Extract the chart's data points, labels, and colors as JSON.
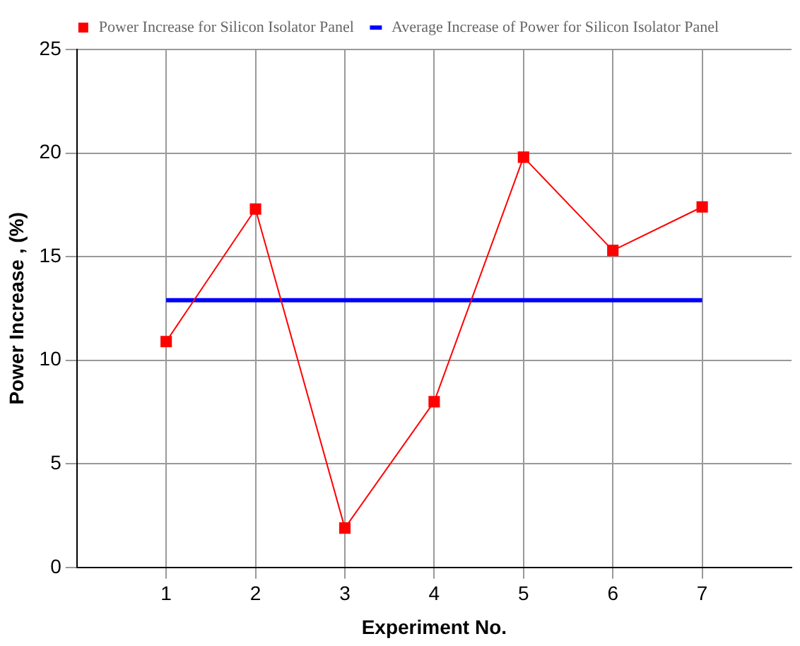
{
  "chart_data": {
    "type": "line",
    "xlabel": "Experiment No.",
    "ylabel": "Power Increase , (%)",
    "xlim": [
      0,
      8
    ],
    "xticks": [
      1,
      2,
      3,
      4,
      5,
      6,
      7
    ],
    "ylim": [
      0,
      25
    ],
    "yticks": [
      0,
      5,
      10,
      15,
      20,
      25
    ],
    "grid": true,
    "legend": "top",
    "series": [
      {
        "name": "Power Increase for Silicon Isolator Panel",
        "color": "#ff0000",
        "marker": "square",
        "x": [
          1,
          2,
          3,
          4,
          5,
          6,
          7
        ],
        "values": [
          10.9,
          17.3,
          1.9,
          8.0,
          19.8,
          15.3,
          17.4
        ]
      },
      {
        "name": "Average Increase of Power for Silicon Isolator Panel",
        "color": "#0000ff",
        "marker": "none",
        "x": [
          1,
          7
        ],
        "values": [
          12.9,
          12.9
        ]
      }
    ]
  }
}
